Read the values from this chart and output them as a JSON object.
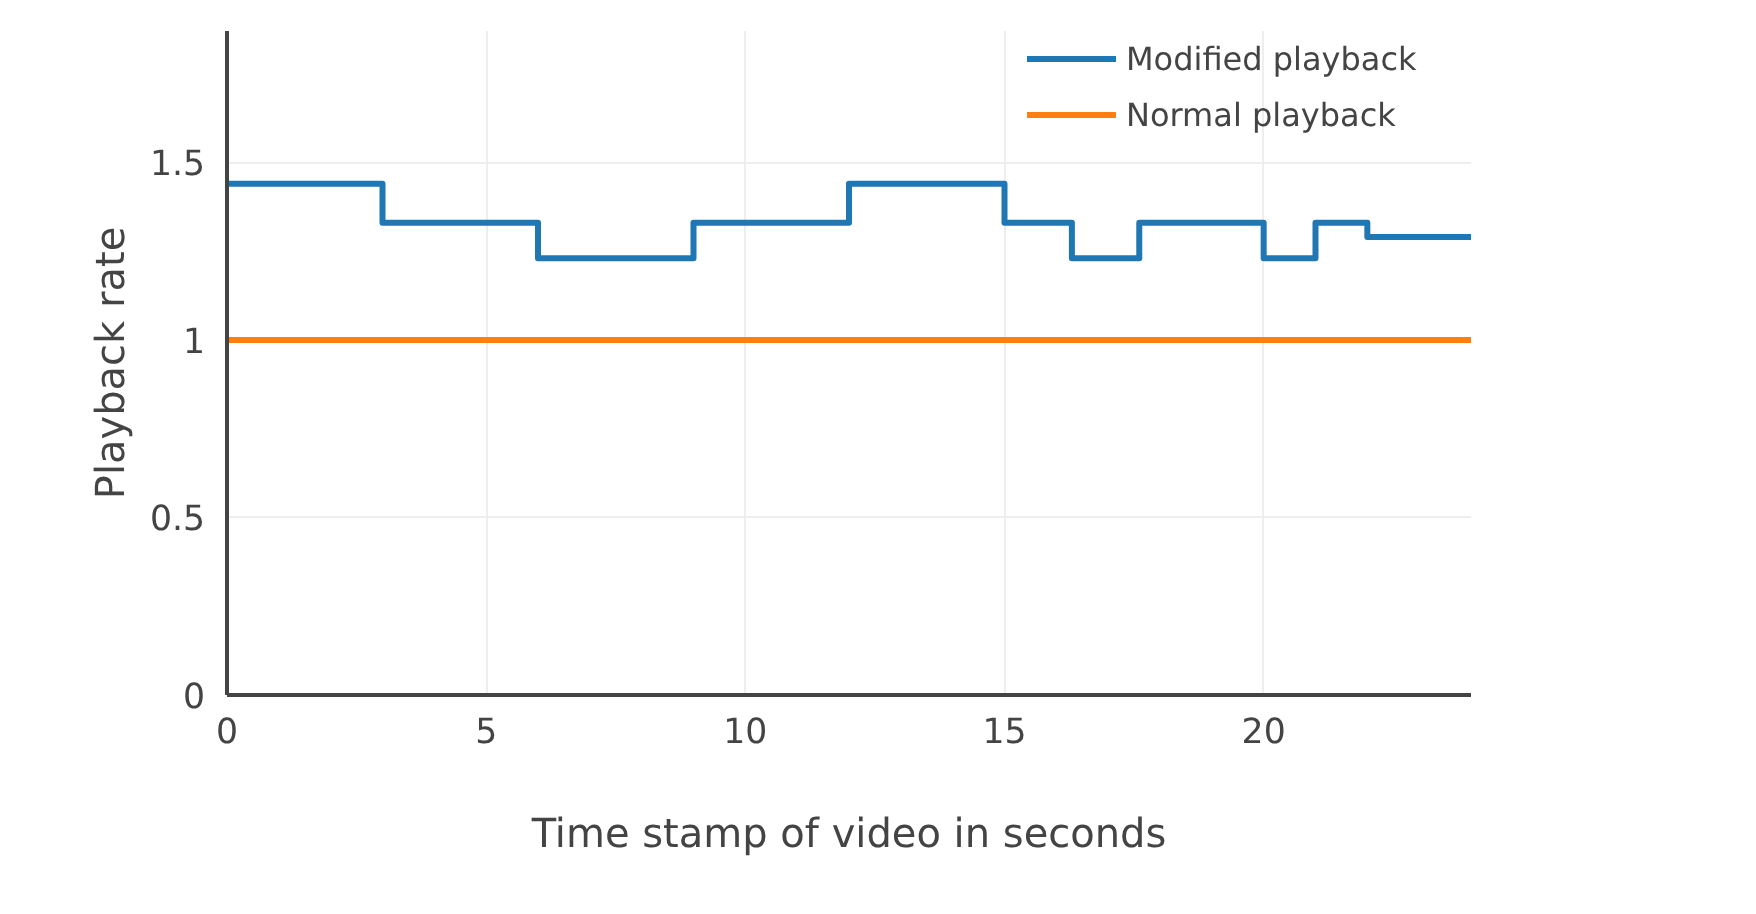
{
  "chart_data": {
    "type": "step",
    "xlabel": "Time stamp of video in seconds",
    "ylabel": "Playback rate",
    "xlim": [
      0,
      24
    ],
    "ylim": [
      0,
      1.87
    ],
    "xticks": [
      0,
      5,
      10,
      15,
      20
    ],
    "yticks": [
      0,
      0.5,
      1,
      1.5
    ],
    "grid": true,
    "legend": "top right",
    "series": [
      {
        "name": "Modified playback",
        "color": "#1f77b4",
        "x": [
          0,
          3,
          6,
          9,
          12,
          15,
          16.3,
          17.6,
          20,
          21,
          22,
          24
        ],
        "values": [
          1.44,
          1.33,
          1.23,
          1.33,
          1.44,
          1.33,
          1.23,
          1.33,
          1.23,
          1.33,
          1.29,
          1.29
        ]
      },
      {
        "name": "Normal playback",
        "color": "#ff7f0e",
        "x": [
          0,
          24
        ],
        "values": [
          1,
          1
        ]
      }
    ]
  }
}
